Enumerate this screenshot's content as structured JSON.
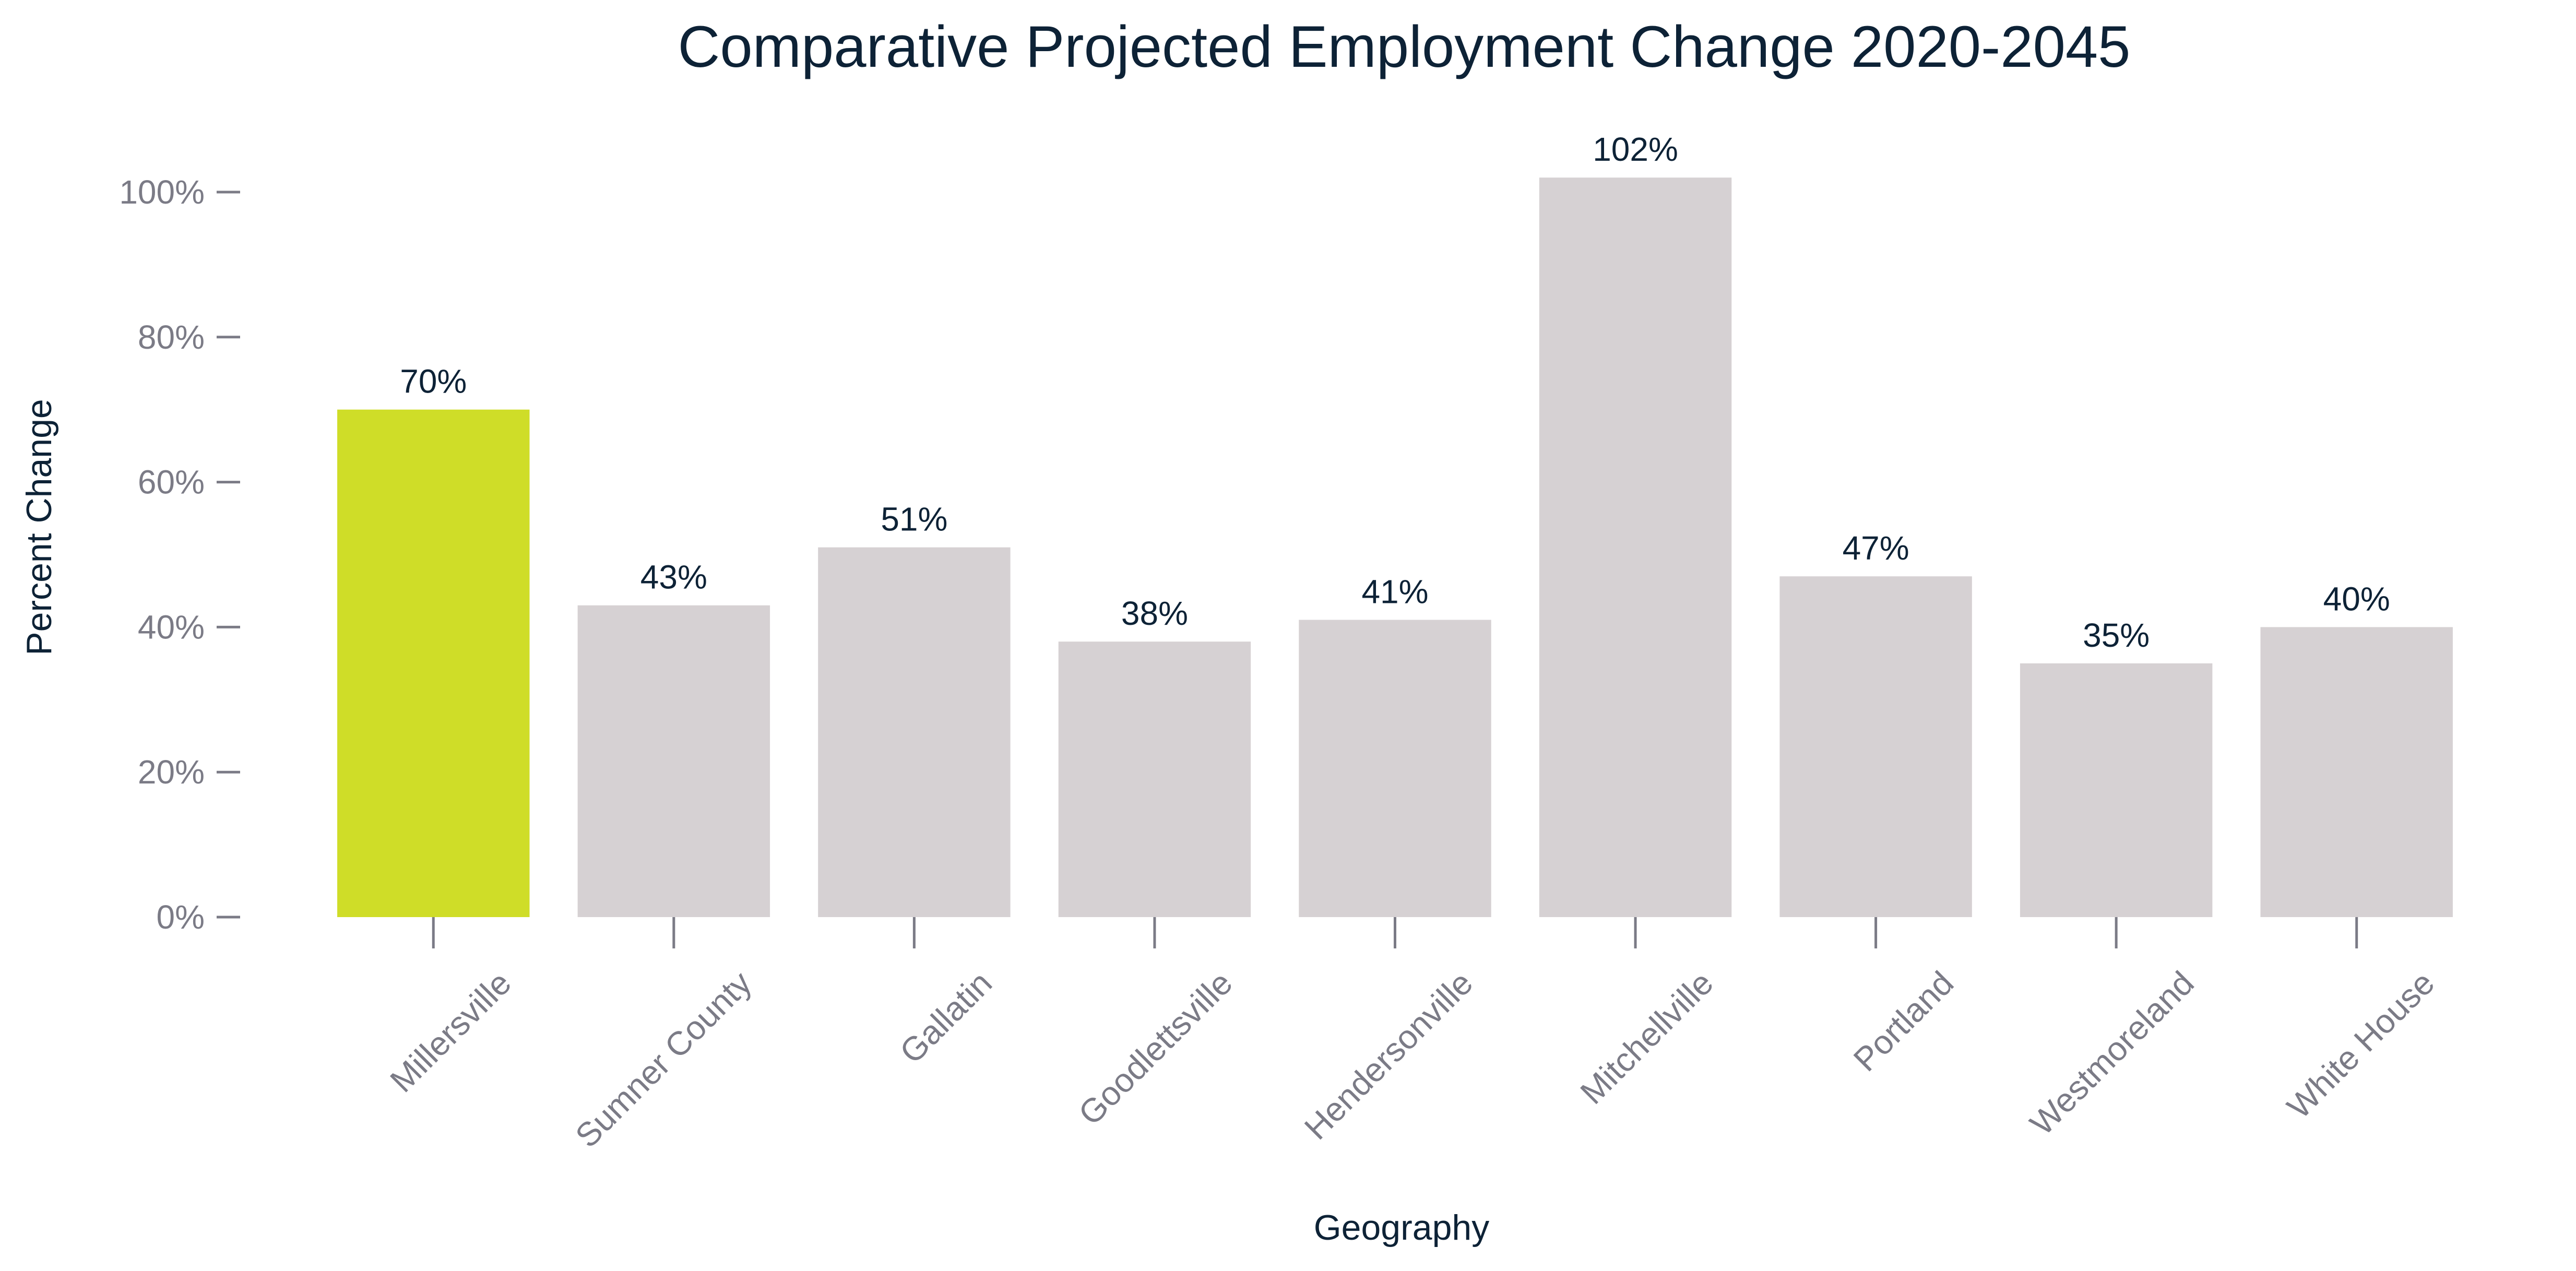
{
  "chart_data": {
    "type": "bar",
    "title": "Comparative Projected Employment Change 2020-2045",
    "xlabel": "Geography",
    "ylabel": "Percent Change",
    "categories": [
      "Millersville",
      "Sumner County",
      "Gallatin",
      "Goodlettsville",
      "Hendersonville",
      "Mitchellville",
      "Portland",
      "Westmoreland",
      "White House"
    ],
    "values": [
      70,
      43,
      51,
      38,
      41,
      102,
      47,
      35,
      40
    ],
    "data_labels": [
      "70%",
      "43%",
      "51%",
      "38%",
      "41%",
      "102%",
      "47%",
      "35%",
      "40%"
    ],
    "highlight_category": "Millersville",
    "ylim": [
      0,
      100
    ],
    "yticks": [
      0,
      20,
      40,
      60,
      80,
      100
    ],
    "ytick_labels": [
      "0%",
      "20%",
      "40%",
      "60%",
      "80%",
      "100%"
    ],
    "grid": false,
    "legend": "none",
    "colors": {
      "highlight": "#cfdd28",
      "bar": "#d6d1d3",
      "title": "#0d2236",
      "axis_text": "#7b7b86"
    }
  }
}
